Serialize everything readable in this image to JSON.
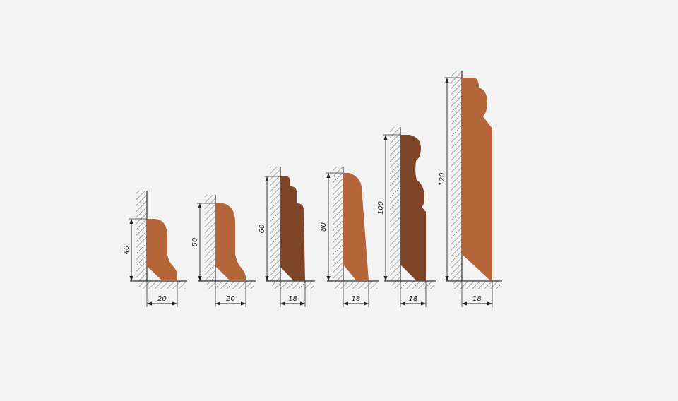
{
  "colors": {
    "board_light": "#b5653a",
    "board_dark": "#7f4529",
    "line": "#333333",
    "background": "#f3f3f3"
  },
  "profiles": [
    {
      "height_label": "40",
      "width_label": "20",
      "tone": "light"
    },
    {
      "height_label": "50",
      "width_label": "20",
      "tone": "light"
    },
    {
      "height_label": "60",
      "width_label": "18",
      "tone": "dark"
    },
    {
      "height_label": "80",
      "width_label": "18",
      "tone": "light"
    },
    {
      "height_label": "100",
      "width_label": "18",
      "tone": "dark"
    },
    {
      "height_label": "120",
      "width_label": "18",
      "tone": "light"
    }
  ]
}
